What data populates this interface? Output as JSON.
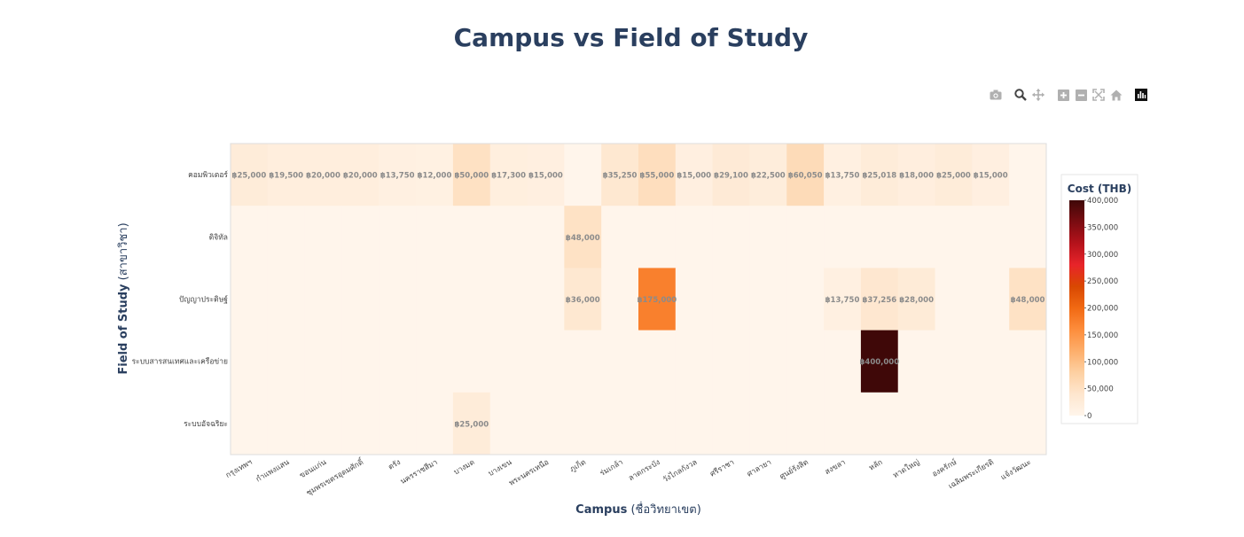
{
  "title": "Campus vs Field of Study",
  "modebar": [
    {
      "name": "camera-icon",
      "label": "Download plot as a png"
    },
    {
      "name": "zoom-icon",
      "label": "Zoom"
    },
    {
      "name": "pan-icon",
      "label": "Pan"
    },
    {
      "name": "zoom-in-icon",
      "label": "Zoom in"
    },
    {
      "name": "zoom-out-icon",
      "label": "Zoom out"
    },
    {
      "name": "autoscale-icon",
      "label": "Autoscale"
    },
    {
      "name": "reset-axes-icon",
      "label": "Reset axes"
    },
    {
      "name": "plotly-logo-icon",
      "label": "Produced with Plotly"
    }
  ],
  "chart_data": {
    "type": "heatmap",
    "title": "Campus vs Field of Study",
    "xlabel_bold": "Campus",
    "xlabel_rest": " (ชื่อวิทยาเขต)",
    "ylabel_bold": "Field of Study",
    "ylabel_rest": " (สาขาวิชา)",
    "x": [
      "กรุงเทพฯ",
      "กำแพงแสน",
      "ขอนแก่น",
      "ชุมพรเขตรอุดมศักดิ์",
      "ตรัง",
      "นครราชสีมา",
      "บางมด",
      "บางเขน",
      "พระนครเหนือ",
      "ภูเก็ต",
      "ร่มเกล้า",
      "ลาดกระบัง",
      "วังไกลกังวล",
      "ศรีราชา",
      "ศาลายา",
      "ศูนย์รังสิต",
      "สงขลา",
      "หลัก",
      "หาดใหญ่",
      "องครักษ์",
      "เฉลิมพระเกียรติ",
      "แจ้งวัฒนะ"
    ],
    "y": [
      "คอมพิวเตอร์",
      "ดิจิทัล",
      "ปัญญาประดิษฐ์",
      "ระบบสารสนเทศและเครือข่าย",
      "ระบบอัจฉริยะ"
    ],
    "z": [
      [
        25000,
        19500,
        20000,
        20000,
        13750,
        12000,
        50000,
        17300,
        15000,
        0,
        35250,
        55000,
        15000,
        29100,
        22500,
        60050,
        13750,
        25018,
        18000,
        25000,
        15000,
        0
      ],
      [
        0,
        0,
        0,
        0,
        0,
        0,
        0,
        0,
        0,
        48000,
        0,
        0,
        0,
        0,
        0,
        0,
        0,
        0,
        0,
        0,
        0,
        0
      ],
      [
        0,
        0,
        0,
        0,
        0,
        0,
        0,
        0,
        0,
        36000,
        0,
        175000,
        0,
        0,
        0,
        0,
        13750,
        37256,
        28000,
        0,
        0,
        48000
      ],
      [
        0,
        0,
        0,
        0,
        0,
        0,
        0,
        0,
        0,
        0,
        0,
        0,
        0,
        0,
        0,
        0,
        0,
        400000,
        0,
        0,
        0,
        0
      ],
      [
        0,
        0,
        0,
        0,
        0,
        0,
        25000,
        0,
        0,
        0,
        0,
        0,
        0,
        0,
        0,
        0,
        0,
        0,
        0,
        0,
        0,
        0
      ]
    ],
    "cell_text": [
      [
        "฿25,000",
        "฿19,500",
        "฿20,000",
        "฿20,000",
        "฿13,750",
        "฿12,000",
        "฿50,000",
        "฿17,300",
        "฿15,000",
        "",
        "฿35,250",
        "฿55,000",
        "฿15,000",
        "฿29,100",
        "฿22,500",
        "฿60,050",
        "฿13,750",
        "฿25,018",
        "฿18,000",
        "฿25,000",
        "฿15,000",
        ""
      ],
      [
        "",
        "",
        "",
        "",
        "",
        "",
        "",
        "",
        "",
        "฿48,000",
        "",
        "",
        "",
        "",
        "",
        "",
        "",
        "",
        "",
        "",
        "",
        ""
      ],
      [
        "",
        "",
        "",
        "",
        "",
        "",
        "",
        "",
        "",
        "฿36,000",
        "",
        "฿175,000",
        "",
        "",
        "",
        "",
        "฿13,750",
        "฿37,256",
        "฿28,000",
        "",
        "",
        "฿48,000"
      ],
      [
        "",
        "",
        "",
        "",
        "",
        "",
        "",
        "",
        "",
        "",
        "",
        "",
        "",
        "",
        "",
        "",
        "",
        "฿400,000",
        "",
        "",
        "",
        ""
      ],
      [
        "",
        "",
        "",
        "",
        "",
        "",
        "฿25,000",
        "",
        "",
        "",
        "",
        "",
        "",
        "",
        "",
        "",
        "",
        "",
        "",
        "",
        "",
        ""
      ]
    ],
    "zlim": [
      0,
      400000
    ],
    "colorscale": [
      "#fff5eb",
      "#fee6ce",
      "#fdd0a2",
      "#fdae6b",
      "#fd8d3c",
      "#f16913",
      "#d94801",
      "#e8242a",
      "#b5121b",
      "#7a0c11",
      "#3f0808"
    ],
    "colorbar": {
      "title": "Cost (THB)",
      "ticks": [
        0,
        50000,
        100000,
        150000,
        200000,
        250000,
        300000,
        350000,
        400000
      ],
      "ticktext": [
        "0",
        "50,000",
        "100,000",
        "150,000",
        "200,000",
        "250,000",
        "300,000",
        "350,000",
        "400,000"
      ]
    },
    "colors": {
      "title": "#2a3f5f",
      "tick": "#444444",
      "celltext": "#8b8b8b"
    }
  }
}
